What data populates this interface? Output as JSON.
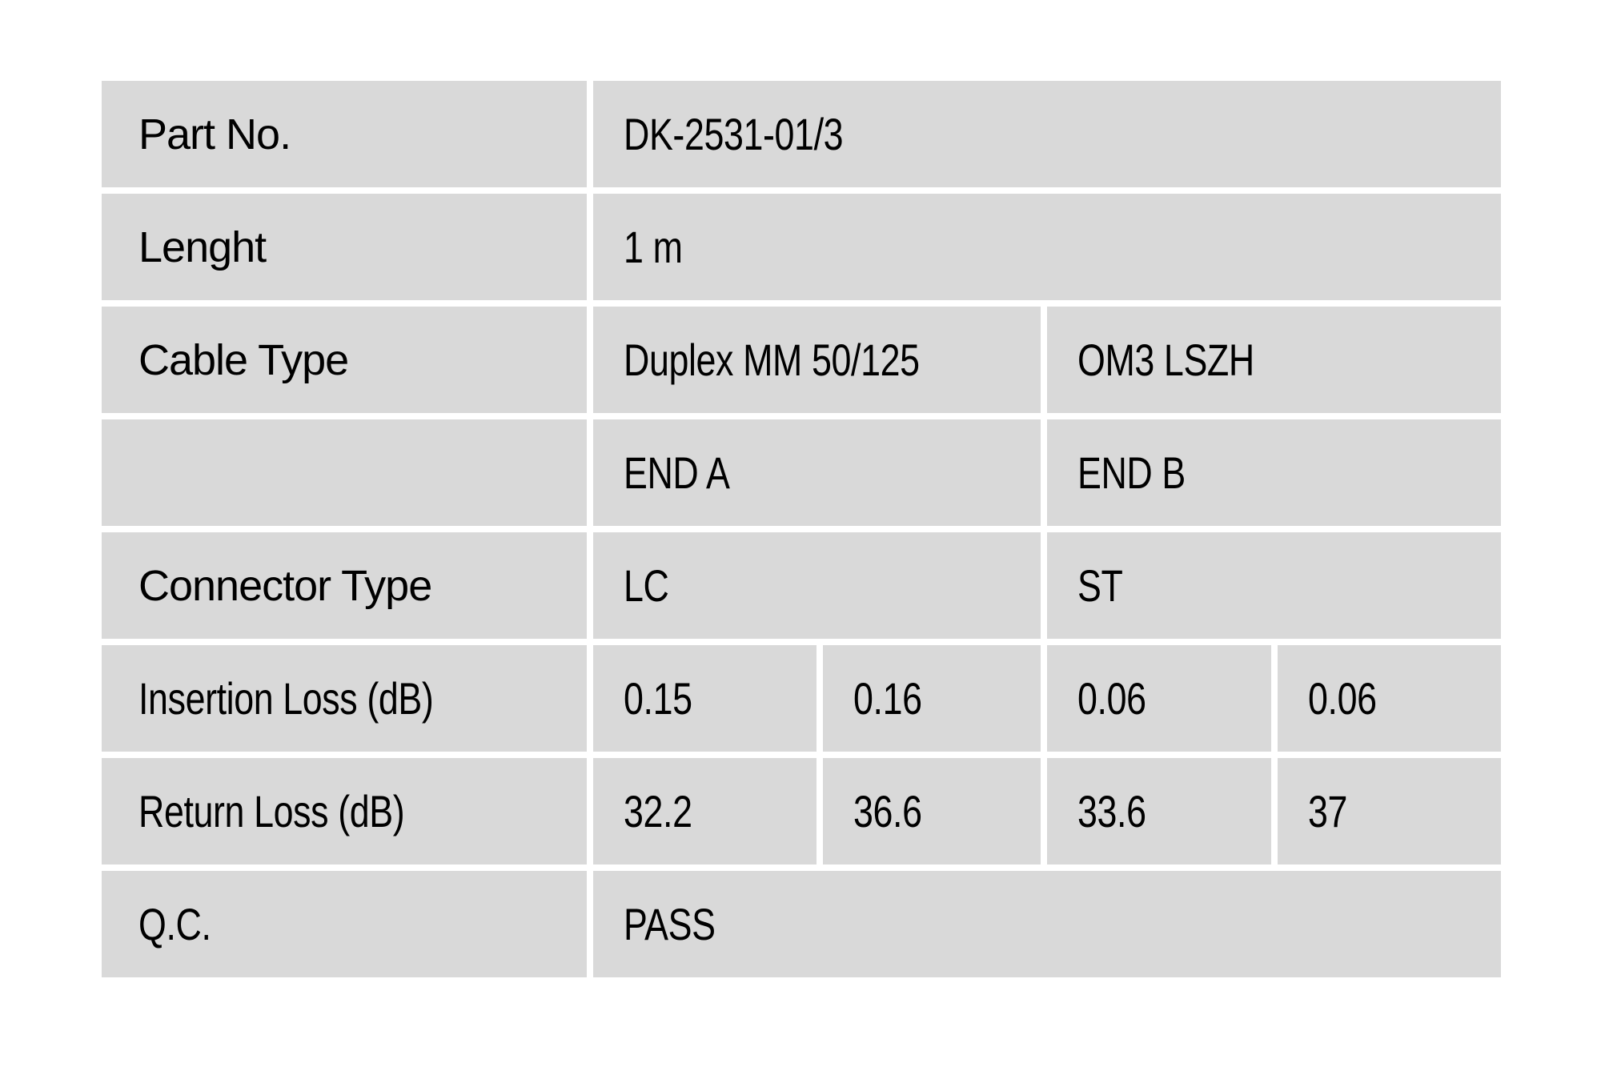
{
  "page": {
    "background_color": "#ffffff",
    "cell_background_color": "#d9d9d9",
    "text_color": "#000000"
  },
  "table": {
    "rows": [
      {
        "label": "Part No.",
        "values": [
          "DK-2531-01/3"
        ]
      },
      {
        "label": "Lenght",
        "values": [
          "1 m"
        ]
      },
      {
        "label": "Cable Type",
        "values": [
          "Duplex MM 50/125",
          "OM3 LSZH"
        ]
      },
      {
        "label": "",
        "values": [
          "END A",
          "END B"
        ]
      },
      {
        "label": "Connector Type",
        "values": [
          "LC",
          "ST"
        ]
      },
      {
        "label": "Insertion Loss (dB)",
        "values": [
          "0.15",
          "0.16",
          "0.06",
          "0.06"
        ]
      },
      {
        "label": "Return Loss (dB)",
        "values": [
          "32.2",
          "36.6",
          "33.6",
          "37"
        ]
      },
      {
        "label": "Q.C.",
        "values": [
          "PASS"
        ]
      }
    ]
  }
}
